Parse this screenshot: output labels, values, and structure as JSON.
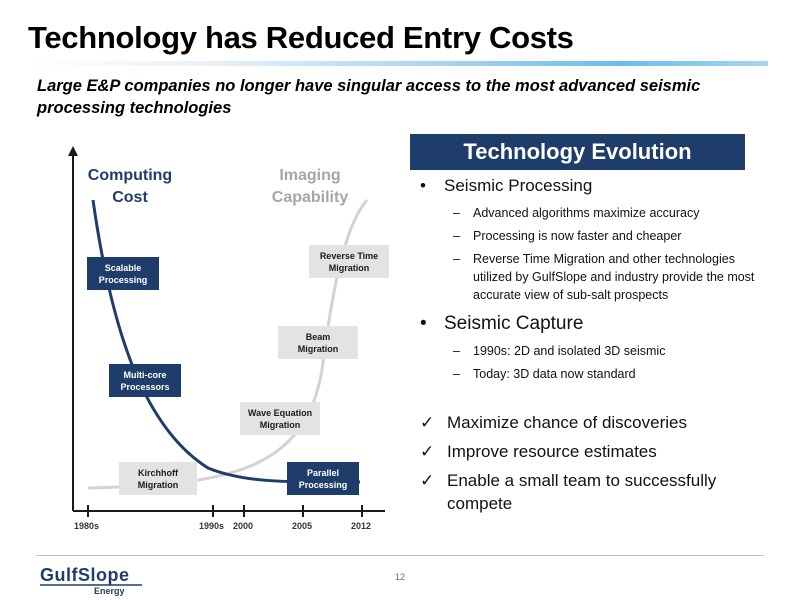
{
  "title": "Technology has Reduced Entry Costs",
  "subtitle": "Large E&P companies no longer have singular access to the most advanced seismic processing technologies",
  "chart": {
    "left_axis_title": [
      "Computing",
      "Cost"
    ],
    "right_axis_title": [
      "Imaging",
      "Capability"
    ],
    "x_ticks": [
      "1980s",
      "1990s",
      "2000",
      "2005",
      "2012"
    ],
    "cost_boxes": [
      {
        "lines": [
          "Scalable",
          "Processing"
        ]
      },
      {
        "lines": [
          "Multi-core",
          "Processors"
        ]
      },
      {
        "lines": [
          "Parallel",
          "Processing"
        ]
      }
    ],
    "capability_boxes": [
      {
        "lines": [
          "Reverse Time",
          "Migration"
        ]
      },
      {
        "lines": [
          "Beam",
          "Migration"
        ]
      },
      {
        "lines": [
          "Wave Equation",
          "Migration"
        ]
      },
      {
        "lines": [
          "Kirchhoff",
          "Migration"
        ]
      }
    ],
    "colors": {
      "cost_curve": "#1f3d6a",
      "capability_curve": "#d3d3d3",
      "dark_box": "#1f3d6a",
      "light_box": "#e3e3e3"
    }
  },
  "evolution": {
    "header": "Technology Evolution",
    "bullets": [
      {
        "text": "Seismic Processing",
        "subs": [
          "Advanced algorithms maximize accuracy",
          "Processing is now faster and cheaper",
          "Reverse Time Migration and other technologies utilized by GulfSlope and industry provide the most accurate view of sub-salt prospects"
        ]
      },
      {
        "text": "Seismic Capture",
        "subs": [
          "1990s:  2D and isolated 3D seismic",
          "Today:  3D data now standard"
        ]
      }
    ],
    "checks": [
      "Maximize chance of discoveries",
      "Improve resource estimates",
      "Enable a small team to successfully compete"
    ],
    "bullet_marker": "•",
    "sub_marker": "–",
    "check_marker": "✓"
  },
  "footer": {
    "logo_top": "GulfSlope",
    "logo_bottom": "Energy",
    "page_number": "12",
    "logo_color": "#1f3d6a"
  }
}
